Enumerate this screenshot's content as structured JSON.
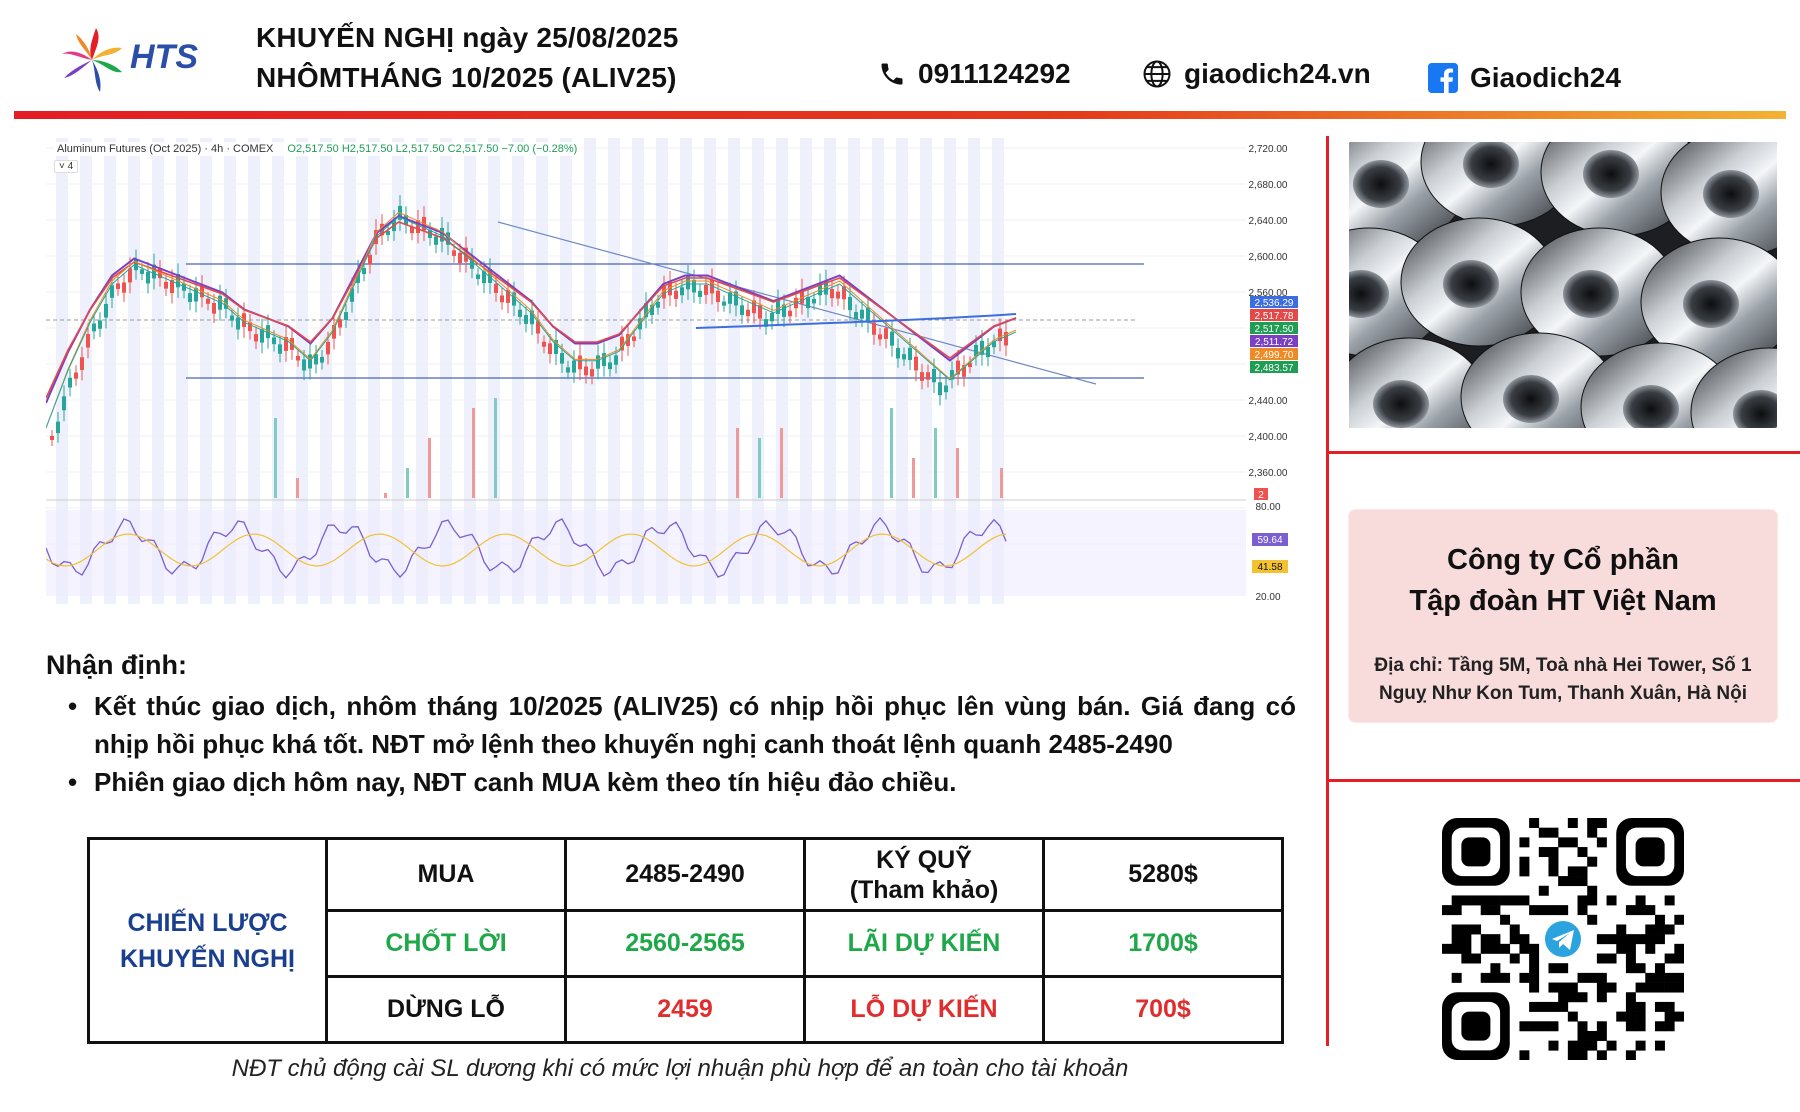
{
  "header": {
    "logo_text": "HTS",
    "title_line1": "KHUYẾN NGHỊ ngày 25/08/2025",
    "title_line2": "NHÔMTHÁNG 10/2025 (ALIV25)",
    "phone": "0911124292",
    "website": "giaodich24.vn",
    "facebook": "Giaodich24",
    "icons": [
      "phone-icon",
      "globe-icon",
      "facebook-icon"
    ]
  },
  "chart": {
    "legend_title": "Aluminum Futures (Oct 2025) · 4h · COMEX",
    "legend_ohlc": "O2,517.50 H2,517.50 L2,517.50 C2,517.50 −7.00 (−0.28%)",
    "legend_collapse": "4",
    "price_ticks": [
      "2,720.00",
      "2,680.00",
      "2,640.00",
      "2,600.00",
      "2,560.00",
      "2,440.00",
      "2,400.00",
      "2,360.00"
    ],
    "price_badges": [
      {
        "text": "2,536.29",
        "color": "#3d6ee0"
      },
      {
        "text": "2,517.78",
        "color": "#e24a4a"
      },
      {
        "text": "2,517.50",
        "color": "#1f9d55"
      },
      {
        "text": "2,511.72",
        "color": "#7b3fc4"
      },
      {
        "text": "2,499.70",
        "color": "#f08a24"
      },
      {
        "text": "2,483.57",
        "color": "#1f9d55"
      }
    ],
    "volume_badge": "2",
    "rsi_ticks": [
      "80.00",
      "20.00"
    ],
    "rsi_badges": [
      {
        "text": "59.64",
        "color": "#7b5fd0"
      },
      {
        "text": "41.58",
        "color": "#f2c230"
      }
    ]
  },
  "company": {
    "name_line1": "Công ty Cổ phần",
    "name_line2": "Tập đoàn HT Việt Nam",
    "address_line1": "Địa chỉ: Tầng 5M, Toà nhà Hei Tower, Số 1",
    "address_line2": "Nguỵ Như Kon Tum, Thanh Xuân, Hà Nội"
  },
  "analysis": {
    "heading": "Nhận định:",
    "bullets": [
      "Kết thúc giao dịch, nhôm tháng 10/2025 (ALIV25) có nhịp hồi phục lên vùng bán. Giá đang có nhịp hồi phục khá tốt. NĐT mở lệnh theo khuyến nghị canh thoát lệnh quanh 2485-2490",
      "Phiên giao dịch hôm nay, NĐT canh MUA kèm theo tín hiệu đảo chiều."
    ]
  },
  "strategy": {
    "label_line1": "CHIẾN LƯỢC",
    "label_line2": "KHUYẾN NGHỊ",
    "action": "MUA",
    "entry": "2485-2490",
    "margin_line1": "KÝ QUỸ",
    "margin_line2": "(Tham khảo)",
    "margin_value": "5280$",
    "tp_label": "CHỐT LỜI",
    "tp_value": "2560-2565",
    "profit_label": "LÃI DỰ KIẾN",
    "profit_value": "1700$",
    "sl_label": "DỪNG LỖ",
    "sl_value": "2459",
    "loss_label": "LỖ DỰ KIẾN",
    "loss_value": "700$",
    "colors": {
      "blue": "#1a3f8f",
      "green": "#1fa84a",
      "red": "#e02d2d"
    }
  },
  "footer_note": "NĐT chủ động cài SL dương khi có mức lợi nhuận phù hợp để an toàn cho tài khoản",
  "qr": {
    "center_icon": "telegram-icon"
  }
}
